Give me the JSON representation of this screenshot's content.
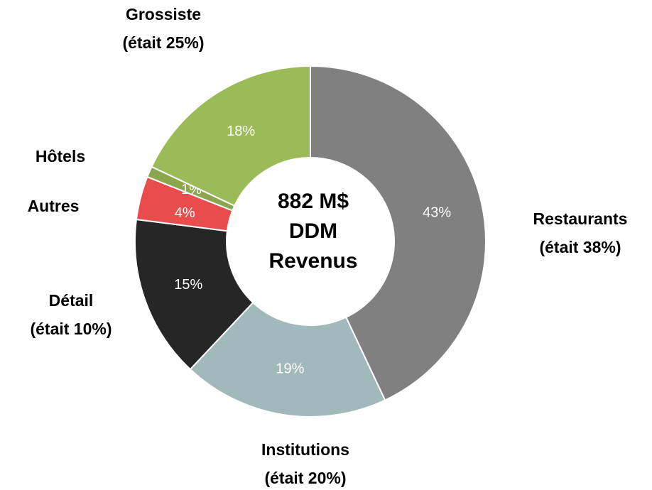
{
  "chart_data": {
    "type": "donut",
    "categories": [
      "Restaurants",
      "Institutions",
      "Détail",
      "Autres",
      "Hôtels",
      "Grossiste"
    ],
    "previous_share_labels": [
      "(était 38%)",
      "(était 20%)",
      "(était 10%)",
      null,
      null,
      "(était 25%)"
    ],
    "values": [
      43,
      19,
      15,
      4,
      1,
      18
    ],
    "value_labels": [
      "43%",
      "19%",
      "15%",
      "4%",
      "1%",
      "18%"
    ],
    "colors": [
      "#808080",
      "#a2b9bc",
      "#262626",
      "#e84c4c",
      "#8aa64e",
      "#9bbb59"
    ],
    "center_text": [
      "882 M$",
      "DDM",
      "Revenus"
    ]
  }
}
